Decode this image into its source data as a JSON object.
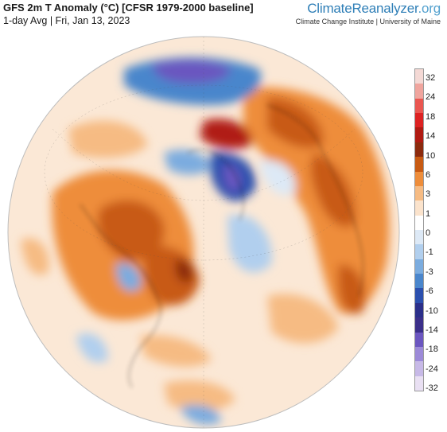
{
  "header": {
    "title": "GFS 2m T Anomaly (°C) [CFSR 1979-2000 baseline]",
    "subtitle": "1-day Avg | Fri, Jan 13, 2023"
  },
  "brand": {
    "name_part1": "ClimateReanalyzer",
    "name_part2": ".org",
    "affiliation": "Climate Change Institute | University of Maine"
  },
  "legend": {
    "labels": [
      "32",
      "24",
      "18",
      "14",
      "10",
      "6",
      "3",
      "1",
      "0",
      "-1",
      "-3",
      "-6",
      "-10",
      "-14",
      "-18",
      "-24",
      "-32"
    ],
    "colors": [
      "#f4d9d5",
      "#f0a59e",
      "#ea5650",
      "#dd2222",
      "#b01a12",
      "#8c2a0d",
      "#c85a12",
      "#ee8d3a",
      "#f6bb83",
      "#fbe3cc",
      "#ffffff",
      "#dde9f6",
      "#b1cfee",
      "#7bacdf",
      "#4a86cc",
      "#2b4fae",
      "#2b2f8a",
      "#3b2f8a",
      "#6b56c0",
      "#9c8ad8",
      "#c7b9e7",
      "#e9e0f3"
    ]
  }
}
